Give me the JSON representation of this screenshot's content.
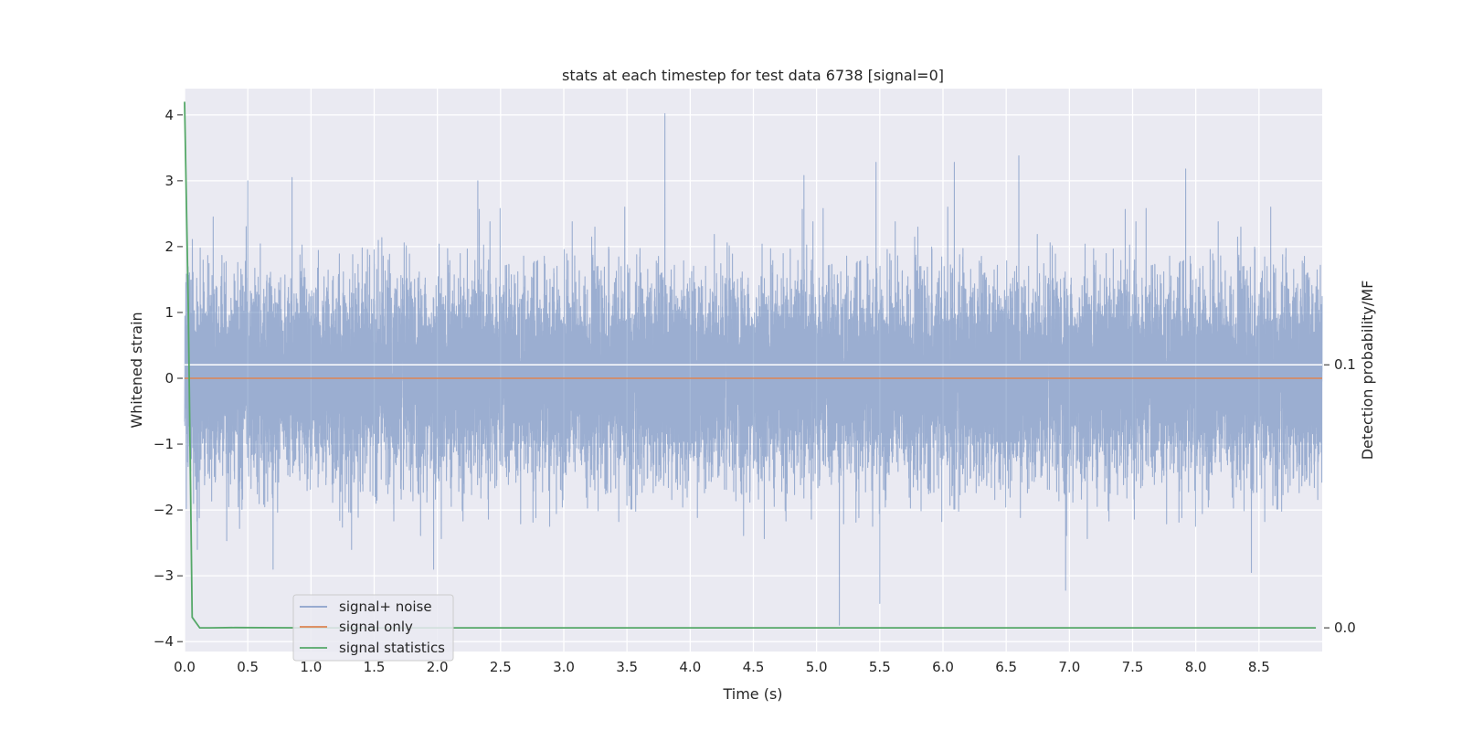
{
  "chart_data": {
    "type": "line",
    "title": "stats at each timestep for test data 6738 [signal=0]",
    "xlabel": "Time (s)",
    "ylabel": "Whitened strain",
    "ylabel_right": "Detection probability/MF",
    "xlim": [
      0.0,
      9.0
    ],
    "ylim": [
      -4.15,
      4.4
    ],
    "ylim_right": [
      -0.009,
      0.205
    ],
    "x_ticks": [
      "0.0",
      "0.5",
      "1.0",
      "1.5",
      "2.0",
      "2.5",
      "3.0",
      "3.5",
      "4.0",
      "4.5",
      "5.0",
      "5.5",
      "6.0",
      "6.5",
      "7.0",
      "7.5",
      "8.0",
      "8.5"
    ],
    "y_ticks": [
      "4",
      "3",
      "2",
      "1",
      "0",
      "−1",
      "−2",
      "−3",
      "−4"
    ],
    "y_ticks_right": [
      "0.1",
      "0.0"
    ],
    "grid": true,
    "legend_position": "lower-left",
    "series": [
      {
        "name": "signal+ noise",
        "color": "#4c72b0",
        "style": "dense noise, roughly ±1.5 whitened strain, peaks near 4.0 at t≈3.8 s and −3.75 at t≈5.19 s",
        "sample_rate": 2048,
        "amplitude_sd": 0.72,
        "spikes": [
          {
            "x": 0.5,
            "y": 3.0
          },
          {
            "x": 0.85,
            "y": 3.05
          },
          {
            "x": 0.7,
            "y": -2.9
          },
          {
            "x": 1.97,
            "y": -2.9
          },
          {
            "x": 2.32,
            "y": 3.0
          },
          {
            "x": 3.8,
            "y": 4.02
          },
          {
            "x": 4.9,
            "y": 3.08
          },
          {
            "x": 5.18,
            "y": -3.75
          },
          {
            "x": 5.47,
            "y": 3.28
          },
          {
            "x": 5.5,
            "y": -3.42
          },
          {
            "x": 6.09,
            "y": 3.28
          },
          {
            "x": 6.6,
            "y": 3.38
          },
          {
            "x": 6.97,
            "y": -3.22
          },
          {
            "x": 7.92,
            "y": 3.18
          },
          {
            "x": 8.44,
            "y": -2.95
          }
        ]
      },
      {
        "name": "signal only",
        "color": "#dd8452",
        "x": [
          0.0,
          9.0
        ],
        "y": [
          0.0,
          0.0
        ]
      },
      {
        "name": "signal statistics",
        "color": "#55a868",
        "axis": "right",
        "x": [
          0.0,
          0.03,
          0.06,
          0.12,
          0.2,
          0.4,
          1.0,
          2.0,
          3.0,
          4.0,
          5.0,
          6.0,
          7.0,
          8.0,
          8.95
        ],
        "y": [
          0.2,
          0.12,
          0.004,
          0.0,
          0.0,
          0.0001,
          0.0,
          0.0,
          0.0,
          0.0,
          0.0,
          0.0,
          0.0,
          0.0,
          0.0
        ]
      }
    ],
    "reference_line_right": 0.1
  }
}
